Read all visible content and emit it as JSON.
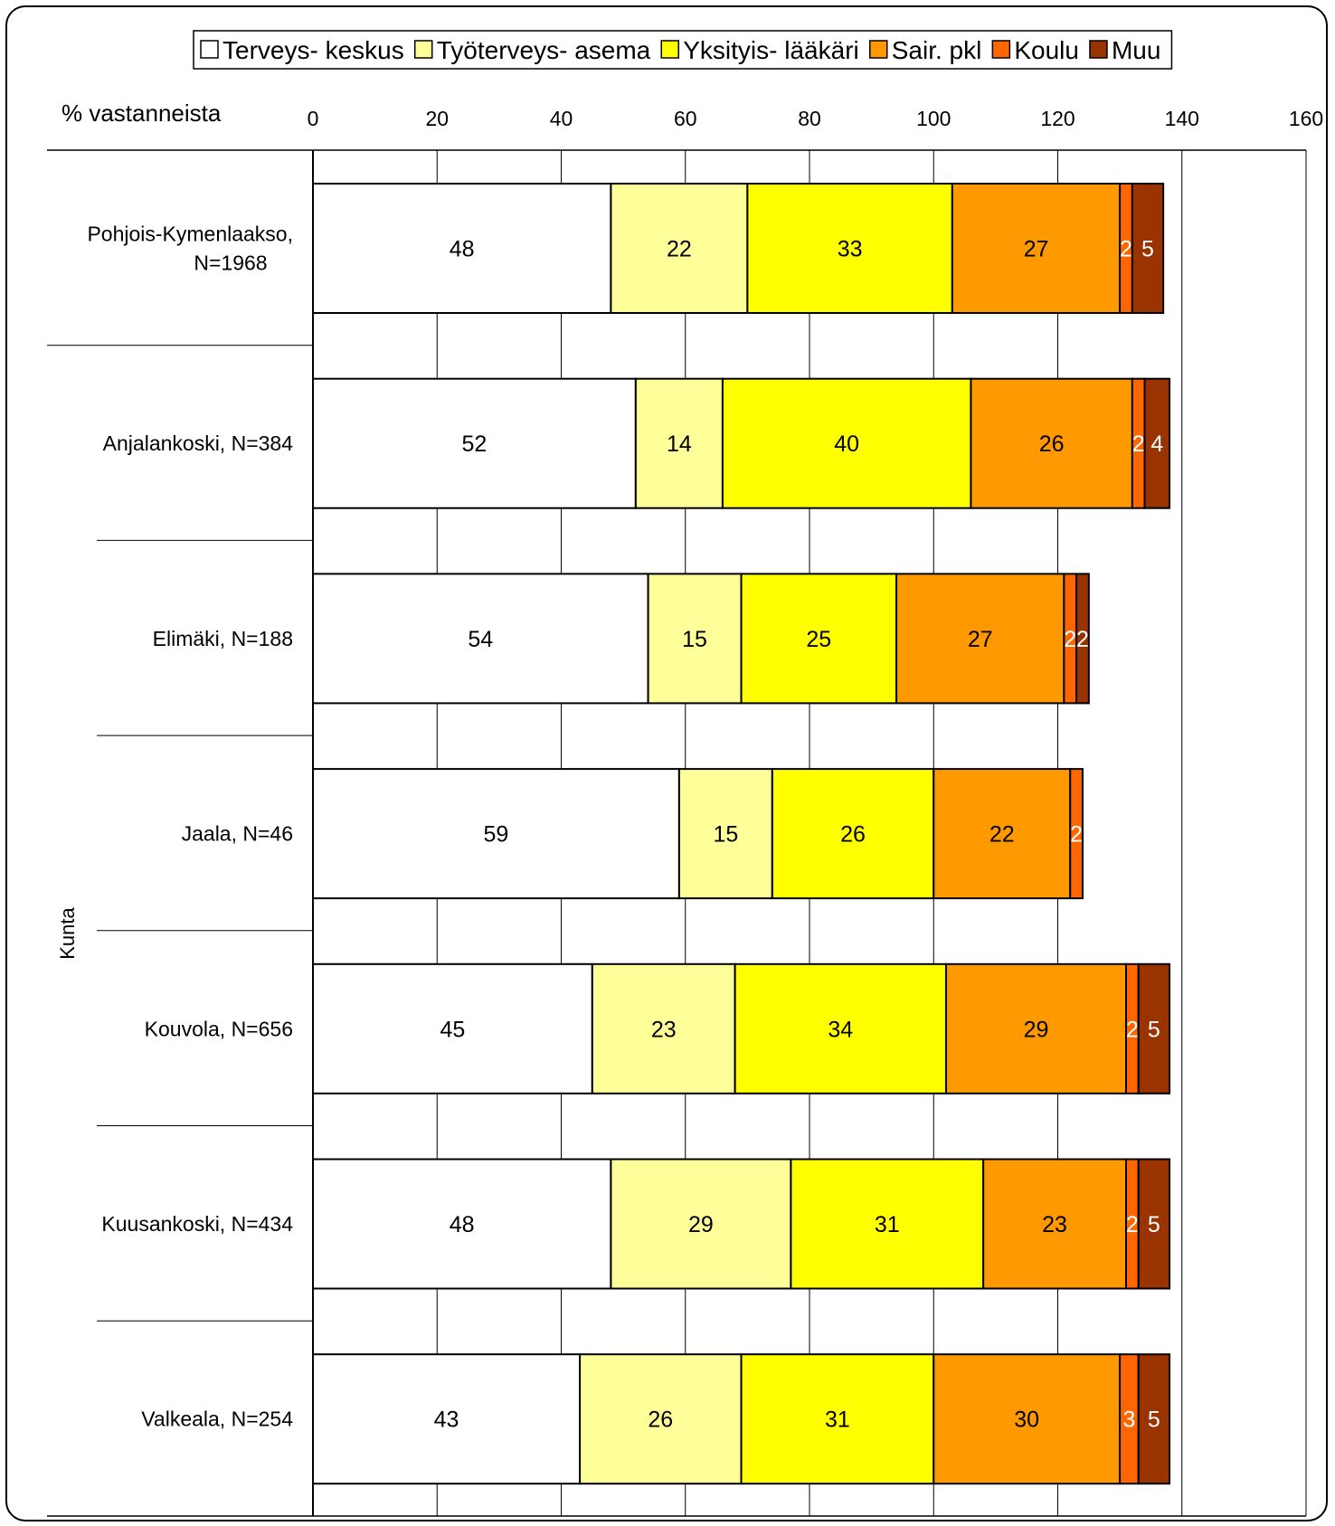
{
  "chart_data": {
    "type": "bar",
    "orientation": "horizontal",
    "stacked": true,
    "ylabel": "% vastanneista",
    "category_axis_title": "Kunta",
    "xlim": [
      0,
      160
    ],
    "x_ticks": [
      0,
      20,
      40,
      60,
      80,
      100,
      120,
      140,
      160
    ],
    "grid": true,
    "legend_position": "top",
    "categories": [
      "Pohjois-Kymenlaakso, N=1968",
      "Anjalankoski, N=384",
      "Elimäki, N=188",
      "Jaala, N=46",
      "Kouvola, N=656",
      "Kuusankoski, N=434",
      "Valkeala, N=254"
    ],
    "series": [
      {
        "name": "Terveys- keskus",
        "color": "#ffffff",
        "label_color": "#000000",
        "values": [
          48,
          52,
          54,
          59,
          45,
          48,
          43
        ]
      },
      {
        "name": "Työterveys- asema",
        "color": "#ffff99",
        "label_color": "#000000",
        "values": [
          22,
          14,
          15,
          15,
          23,
          29,
          26
        ]
      },
      {
        "name": "Yksityis- lääkäri",
        "color": "#ffff00",
        "label_color": "#000000",
        "values": [
          33,
          40,
          25,
          26,
          34,
          31,
          31
        ]
      },
      {
        "name": "Sair. pkl",
        "color": "#ff9900",
        "label_color": "#000000",
        "values": [
          27,
          26,
          27,
          22,
          29,
          23,
          30
        ]
      },
      {
        "name": "Koulu",
        "color": "#ff6600",
        "label_color": "#ffffff",
        "values": [
          2,
          2,
          2,
          2,
          2,
          2,
          3
        ]
      },
      {
        "name": "Muu",
        "color": "#993300",
        "label_color": "#ffffff",
        "values": [
          5,
          4,
          2,
          null,
          5,
          5,
          5
        ]
      }
    ]
  }
}
